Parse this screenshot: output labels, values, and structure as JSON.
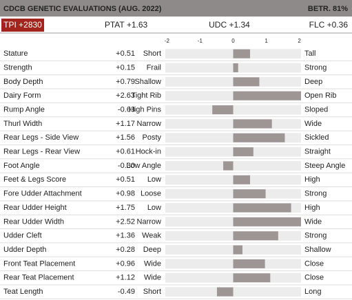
{
  "header": {
    "title": "CDCB GENETIC EVALUATIONS (AUG. 2022)",
    "reliability": "BETR. 81%"
  },
  "summary": [
    "TPI +2830",
    "PTAT +1.63",
    "UDC +1.34",
    "FLC +0.36"
  ],
  "chart_data": {
    "type": "bar",
    "orientation": "horizontal",
    "categories": [
      "Stature",
      "Strength",
      "Body Depth",
      "Dairy Form",
      "Rump Angle",
      "Thurl Width",
      "Rear Legs - Side View",
      "Rear Legs - Rear View",
      "Foot Angle",
      "Feet & Legs Score",
      "Fore Udder Attachment",
      "Rear Udder Height",
      "Rear Udder Width",
      "Udder Cleft",
      "Udder Depth",
      "Front Teat Placement",
      "Rear Teat Placement",
      "Teat Length"
    ],
    "values": [
      0.51,
      0.15,
      0.79,
      2.63,
      -0.63,
      1.17,
      1.56,
      0.61,
      -0.3,
      0.51,
      0.98,
      1.75,
      2.52,
      1.36,
      0.28,
      0.96,
      1.12,
      -0.49
    ],
    "value_labels": [
      "+0.51",
      "+0.15",
      "+0.79",
      "+2.63",
      "-0.63",
      "+1.17",
      "+1.56",
      "+0.61",
      "-0.30",
      "+0.51",
      "+0.98",
      "+1.75",
      "+2.52",
      "+1.36",
      "+0.28",
      "+0.96",
      "+1.12",
      "-0.49"
    ],
    "low_labels": [
      "Short",
      "Frail",
      "Shallow",
      "Tight Rib",
      "High Pins",
      "Narrow",
      "Posty",
      "Hock-in",
      "Low Angle",
      "Low",
      "Loose",
      "Low",
      "Narrow",
      "Weak",
      "Deep",
      "Wide",
      "Wide",
      "Short"
    ],
    "high_labels": [
      "Tall",
      "Strong",
      "Deep",
      "Open Rib",
      "Sloped",
      "Wide",
      "Sickled",
      "Straight",
      "Steep Angle",
      "High",
      "Strong",
      "High",
      "Wide",
      "Strong",
      "Shallow",
      "Close",
      "Close",
      "Long"
    ],
    "xlim": [
      -2.05,
      2.05
    ],
    "xticks": [
      -2,
      -1,
      0,
      1,
      2
    ],
    "color": "#9e9595"
  }
}
